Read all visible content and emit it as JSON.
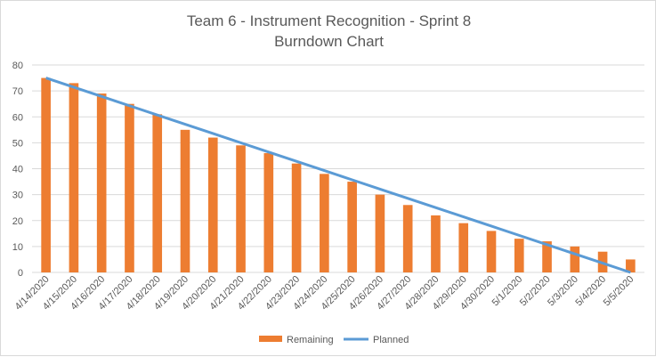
{
  "chart_data": {
    "type": "bar",
    "title": "Team 6 - Instrument Recognition - Sprint 8",
    "subtitle": "Burndown Chart",
    "xlabel": "",
    "ylabel": "",
    "ylim": [
      0,
      80
    ],
    "yticks": [
      0,
      10,
      20,
      30,
      40,
      50,
      60,
      70,
      80
    ],
    "grid": true,
    "legend_position": "bottom",
    "categories": [
      "4/14/2020",
      "4/15/2020",
      "4/16/2020",
      "4/17/2020",
      "4/18/2020",
      "4/19/2020",
      "4/20/2020",
      "4/21/2020",
      "4/22/2020",
      "4/23/2020",
      "4/24/2020",
      "4/25/2020",
      "4/26/2020",
      "4/27/2020",
      "4/28/2020",
      "4/29/2020",
      "4/30/2020",
      "5/1/2020",
      "5/2/2020",
      "5/3/2020",
      "5/4/2020",
      "5/5/2020"
    ],
    "series": [
      {
        "name": "Remaining",
        "kind": "bar",
        "color": "#ed7d31",
        "values": [
          75,
          73,
          69,
          65,
          61,
          55,
          52,
          49,
          46,
          42,
          38,
          35,
          30,
          26,
          22,
          19,
          16,
          13,
          12,
          10,
          8,
          5
        ]
      },
      {
        "name": "Planned",
        "kind": "line",
        "color": "#5b9bd5",
        "values": [
          75,
          71.43,
          67.86,
          64.29,
          60.71,
          57.14,
          53.57,
          50,
          46.43,
          42.86,
          39.29,
          35.71,
          32.14,
          28.57,
          25,
          21.43,
          17.86,
          14.29,
          10.71,
          7.14,
          3.57,
          0
        ]
      }
    ]
  },
  "colors": {
    "gridline": "#d9d9d9",
    "text": "#595959"
  }
}
